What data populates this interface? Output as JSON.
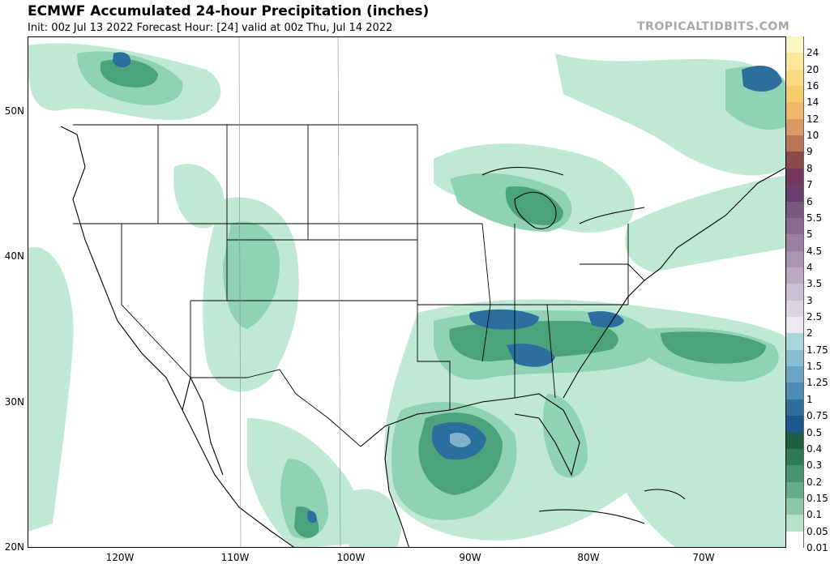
{
  "header": {
    "title": "ECMWF Accumulated 24-hour Precipitation (inches)",
    "subtitle": "Init: 00z Jul 13 2022   Forecast Hour: [24]   valid at 00z Thu, Jul 14 2022",
    "watermark": "TROPICALTIDBITS.COM"
  },
  "map": {
    "lat_labels": [
      "50N",
      "40N",
      "30N",
      "20N"
    ],
    "lon_labels": [
      "120W",
      "110W",
      "100W",
      "90W",
      "80W",
      "70W"
    ],
    "colors": {
      "light": "#bfe9d6",
      "mid": "#8fd3b4",
      "dark": "#4aa37a",
      "darker": "#1f6e4a",
      "blue": "#2a6f9e",
      "lightblue": "#7fb0cc"
    }
  },
  "legend": [
    {
      "label": "24",
      "color": "#fdf6bf"
    },
    {
      "label": "20",
      "color": "#fbe89a"
    },
    {
      "label": "16",
      "color": "#f9dc82"
    },
    {
      "label": "14",
      "color": "#f6cc6c"
    },
    {
      "label": "12",
      "color": "#efb86a"
    },
    {
      "label": "10",
      "color": "#d99a63"
    },
    {
      "label": "9",
      "color": "#b87658"
    },
    {
      "label": "8",
      "color": "#8a4a4a"
    },
    {
      "label": "7",
      "color": "#74385a"
    },
    {
      "label": "6",
      "color": "#6a3f6e"
    },
    {
      "label": "5.5",
      "color": "#7a5882"
    },
    {
      "label": "5",
      "color": "#8a6a92"
    },
    {
      "label": "4.5",
      "color": "#9a7fa2"
    },
    {
      "label": "4",
      "color": "#aa94b2"
    },
    {
      "label": "3.5",
      "color": "#bba9c3"
    },
    {
      "label": "3",
      "color": "#cbbfd3"
    },
    {
      "label": "2.5",
      "color": "#ddd4e2"
    },
    {
      "label": "2",
      "color": "#eee9f0"
    },
    {
      "label": "1.75",
      "color": "#a9d6dc"
    },
    {
      "label": "1.5",
      "color": "#88bfd0"
    },
    {
      "label": "1.25",
      "color": "#6aa6c4"
    },
    {
      "label": "1",
      "color": "#4d8db4"
    },
    {
      "label": "0.75",
      "color": "#2f6f9e"
    },
    {
      "label": "0.5",
      "color": "#1a5a8a"
    },
    {
      "label": "0.4",
      "color": "#1d5e40"
    },
    {
      "label": "0.3",
      "color": "#2e7a54"
    },
    {
      "label": "0.2",
      "color": "#479470"
    },
    {
      "label": "0.15",
      "color": "#66ad8b"
    },
    {
      "label": "0.1",
      "color": "#8cc7a8"
    },
    {
      "label": "0.05",
      "color": "#b6e0c8"
    },
    {
      "label": "0.01",
      "color": "#ffffff"
    }
  ]
}
